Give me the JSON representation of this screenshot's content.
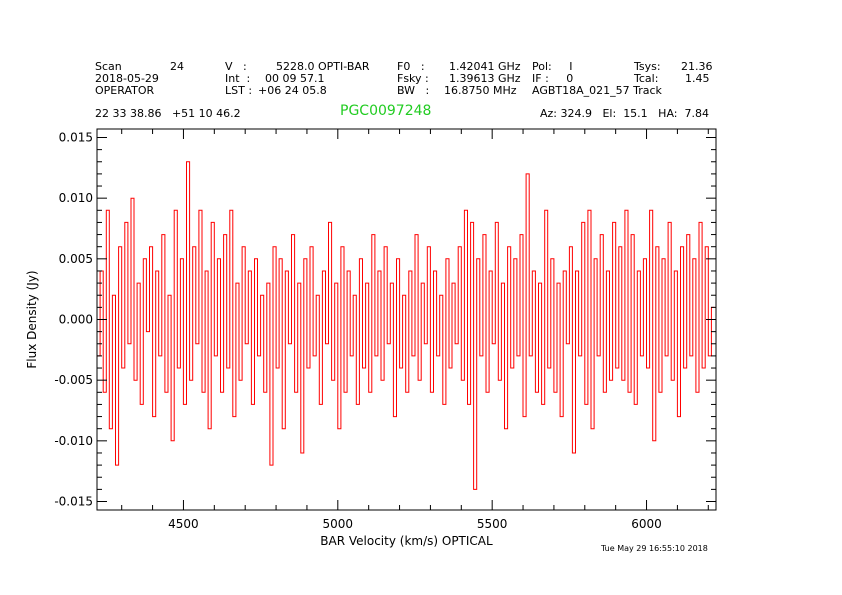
{
  "header": {
    "col1": [
      "Scan",
      "2018-05-29",
      "OPERATOR"
    ],
    "scan_number": "24",
    "col2_labels": [
      "V   :",
      "Int  :",
      "LST :"
    ],
    "col2_values": [
      "5228.0 OPTI-BAR",
      "00 09 57.1",
      "+06 24 05.8"
    ],
    "col3_labels": [
      "F0   :",
      "Fsky :",
      "BW   :"
    ],
    "col3_values": [
      "1.42041 GHz",
      "1.39613 GHz",
      "16.8750 MHz"
    ],
    "col4": [
      "Pol:     I",
      "IF :     0",
      "AGBT18A_021_57 Track"
    ],
    "col5_labels": [
      "Tsys:",
      "Tcal:"
    ],
    "col5_values": [
      "21.36",
      "1.45"
    ],
    "coords": "22 33 38.86   +51 10 46.2",
    "source": "PGC0097248",
    "azel": "Az: 324.9   El:  15.1   HA:  7.84",
    "timestamp": "Tue May 29 16:55:10 2018"
  },
  "colors": {
    "trace": "#ff0000",
    "source": "#22cc22",
    "axes": "#000000"
  },
  "chart_data": {
    "type": "line",
    "title": "",
    "xlabel": "BAR Velocity (km/s) OPTICAL",
    "ylabel": "Flux Density (Jy)",
    "xlim": [
      4220,
      6225
    ],
    "ylim": [
      -0.0157,
      0.0157
    ],
    "xticks": [
      4500,
      5000,
      5500,
      6000
    ],
    "xtick_labels": [
      "4500",
      "5000",
      "5500",
      "6000"
    ],
    "yticks": [
      0.015,
      0.01,
      0.005,
      0.0,
      -0.005,
      -0.01,
      -0.015
    ],
    "ytick_labels": [
      "0.015",
      "0.010",
      "0.005",
      "0.000",
      "-0.005",
      "-0.010",
      "-0.015"
    ],
    "grid": false,
    "series": [
      {
        "color": "#ff0000",
        "x": [
          4225,
          4235,
          4245,
          4255,
          4265,
          4275,
          4285,
          4295,
          4305,
          4315,
          4325,
          4335,
          4345,
          4355,
          4365,
          4375,
          4385,
          4395,
          4405,
          4415,
          4425,
          4435,
          4445,
          4455,
          4465,
          4475,
          4485,
          4495,
          4505,
          4515,
          4525,
          4535,
          4545,
          4555,
          4565,
          4575,
          4585,
          4595,
          4605,
          4615,
          4625,
          4635,
          4645,
          4655,
          4665,
          4675,
          4685,
          4695,
          4705,
          4715,
          4725,
          4735,
          4745,
          4755,
          4765,
          4775,
          4785,
          4795,
          4805,
          4815,
          4825,
          4835,
          4845,
          4855,
          4865,
          4875,
          4885,
          4895,
          4905,
          4915,
          4925,
          4935,
          4945,
          4955,
          4965,
          4975,
          4985,
          4995,
          5005,
          5015,
          5025,
          5035,
          5045,
          5055,
          5065,
          5075,
          5085,
          5095,
          5105,
          5115,
          5125,
          5135,
          5145,
          5155,
          5165,
          5175,
          5185,
          5195,
          5205,
          5215,
          5225,
          5235,
          5245,
          5255,
          5265,
          5275,
          5285,
          5295,
          5305,
          5315,
          5325,
          5335,
          5345,
          5355,
          5365,
          5375,
          5385,
          5395,
          5405,
          5415,
          5425,
          5435,
          5445,
          5455,
          5465,
          5475,
          5485,
          5495,
          5505,
          5515,
          5525,
          5535,
          5545,
          5555,
          5565,
          5575,
          5585,
          5595,
          5605,
          5615,
          5625,
          5635,
          5645,
          5655,
          5665,
          5675,
          5685,
          5695,
          5705,
          5715,
          5725,
          5735,
          5745,
          5755,
          5765,
          5775,
          5785,
          5795,
          5805,
          5815,
          5825,
          5835,
          5845,
          5855,
          5865,
          5875,
          5885,
          5895,
          5905,
          5915,
          5925,
          5935,
          5945,
          5955,
          5965,
          5975,
          5985,
          5995,
          6005,
          6015,
          6025,
          6035,
          6045,
          6055,
          6065,
          6075,
          6085,
          6095,
          6105,
          6115,
          6125,
          6135,
          6145,
          6155,
          6165,
          6175,
          6185,
          6195,
          6205,
          6215
        ],
        "y": [
          -0.003,
          0.004,
          -0.006,
          0.009,
          -0.009,
          0.002,
          -0.012,
          0.006,
          -0.004,
          0.008,
          -0.002,
          0.01,
          -0.005,
          0.003,
          -0.007,
          0.005,
          -0.001,
          0.006,
          -0.008,
          0.004,
          -0.003,
          0.007,
          -0.006,
          0.002,
          -0.01,
          0.009,
          -0.004,
          0.005,
          -0.007,
          0.013,
          -0.005,
          0.006,
          -0.002,
          0.009,
          -0.006,
          0.004,
          -0.009,
          0.008,
          -0.003,
          0.005,
          -0.006,
          0.007,
          -0.004,
          0.009,
          -0.008,
          0.003,
          -0.005,
          0.006,
          -0.002,
          0.004,
          -0.007,
          0.005,
          -0.003,
          0.002,
          -0.006,
          0.003,
          -0.012,
          0.006,
          -0.004,
          0.005,
          -0.009,
          0.004,
          -0.002,
          0.007,
          -0.006,
          0.003,
          -0.011,
          0.005,
          -0.004,
          0.006,
          -0.003,
          0.002,
          -0.007,
          0.004,
          -0.002,
          0.008,
          -0.005,
          0.003,
          -0.009,
          0.006,
          -0.006,
          0.004,
          -0.003,
          0.002,
          -0.007,
          0.005,
          -0.004,
          0.003,
          -0.006,
          0.007,
          -0.003,
          0.004,
          -0.005,
          0.006,
          -0.002,
          0.003,
          -0.008,
          0.005,
          -0.004,
          0.002,
          -0.006,
          0.004,
          -0.003,
          0.007,
          -0.005,
          0.003,
          -0.002,
          0.006,
          -0.006,
          0.004,
          -0.003,
          0.002,
          -0.007,
          0.005,
          -0.004,
          0.003,
          -0.002,
          0.006,
          -0.005,
          0.009,
          -0.007,
          0.008,
          -0.014,
          0.005,
          -0.003,
          0.007,
          -0.006,
          0.004,
          -0.002,
          0.008,
          -0.005,
          0.003,
          -0.009,
          0.006,
          -0.004,
          0.005,
          -0.003,
          0.007,
          -0.008,
          0.012,
          -0.003,
          0.004,
          -0.006,
          0.003,
          -0.007,
          0.009,
          -0.004,
          0.005,
          -0.006,
          0.003,
          -0.008,
          0.004,
          -0.002,
          0.006,
          -0.011,
          0.004,
          -0.003,
          0.008,
          -0.007,
          0.009,
          -0.009,
          0.005,
          -0.003,
          0.007,
          -0.006,
          0.004,
          -0.005,
          0.008,
          -0.004,
          0.006,
          -0.005,
          0.009,
          -0.006,
          0.007,
          -0.007,
          0.004,
          -0.003,
          0.005,
          -0.004,
          0.009,
          -0.01,
          0.006,
          -0.006,
          0.005,
          -0.003,
          0.008,
          -0.005,
          0.004,
          -0.008,
          0.006,
          -0.004,
          0.007,
          -0.003,
          0.005,
          -0.006,
          0.008,
          -0.004,
          0.006,
          -0.003,
          0.001
        ]
      }
    ]
  }
}
